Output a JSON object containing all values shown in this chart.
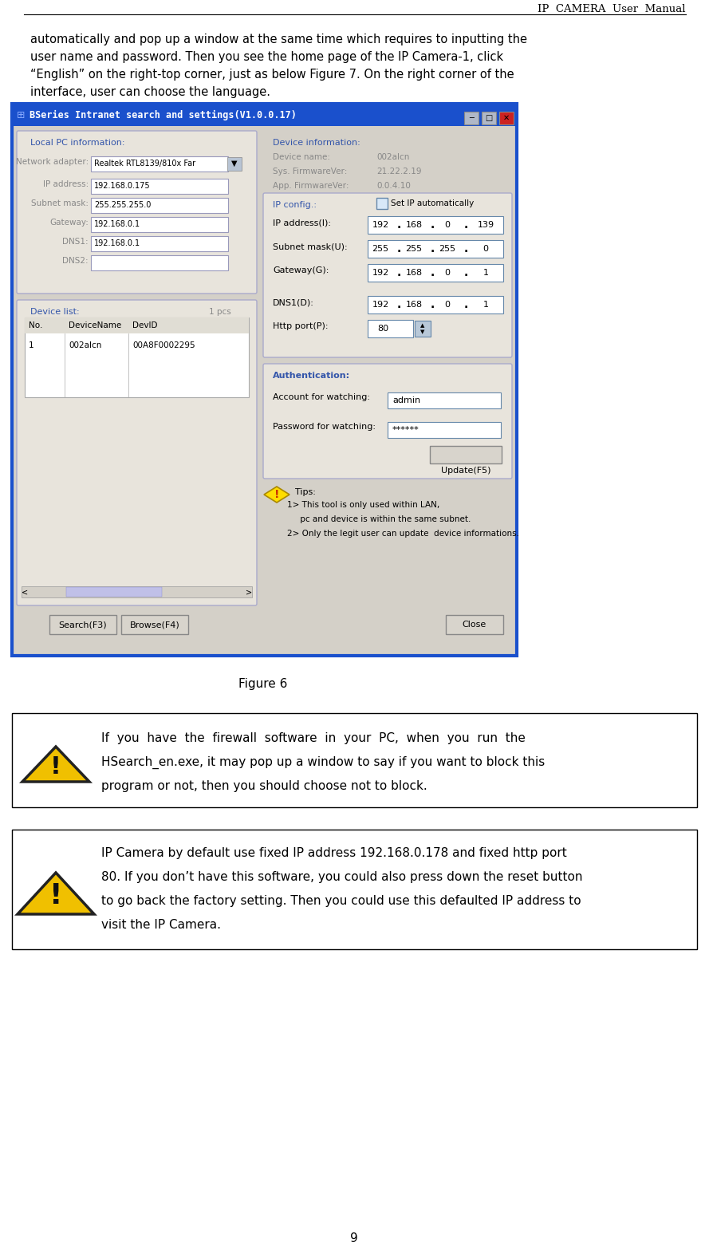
{
  "page_title": "IP  CAMERA  User  Manual",
  "page_number": "9",
  "body_text_1": "automatically and pop up a window at the same time which requires to inputting the",
  "body_text_2": "user name and password. Then you see the home page of the IP Camera-1, click",
  "body_text_3": "“English” on the right-top corner, just as below Figure 7. On the right corner of the",
  "body_text_4": "interface, user can choose the language.",
  "figure_caption": "Figure 6",
  "warning_text_1a": "If  you  have  the  firewall  software  in  your  PC,  when  you  run  the",
  "warning_text_1b": "HSearch_en.exe, it may pop up a window to say if you want to block this",
  "warning_text_1c": "program or not, then you should choose not to block.",
  "warning_text_2a": "IP Camera by default use fixed IP address 192.168.0.178 and fixed http port",
  "warning_text_2b": "80. If you don’t have this software, you could also press down the reset button",
  "warning_text_2c": "to go back the factory setting. Then you could use this defaulted IP address to",
  "warning_text_2d": "visit the IP Camera.",
  "bg_color": "#ffffff",
  "text_color": "#000000",
  "dlg_bg": "#d4d0c8",
  "dlg_border": "#1a50cc",
  "titlebar_bg": "#1a50cc",
  "titlebar_text": "#ffffff",
  "panel_bg": "#e8e4dc",
  "input_bg": "#ffffff",
  "blue_label": "#3355aa"
}
